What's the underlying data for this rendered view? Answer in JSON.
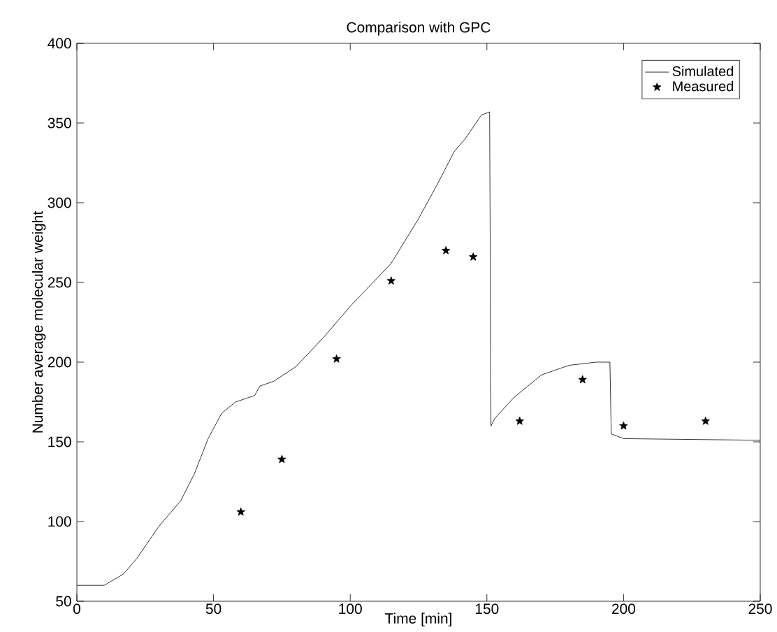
{
  "chart_data": {
    "type": "line",
    "title": "Comparison with GPC",
    "xlabel": "Time [min]",
    "ylabel": "Number average molecular weight",
    "xlim": [
      0,
      250
    ],
    "ylim": [
      50,
      400
    ],
    "xticks": [
      0,
      50,
      100,
      150,
      200,
      250
    ],
    "yticks": [
      50,
      100,
      150,
      200,
      250,
      300,
      350,
      400
    ],
    "legend": "top right",
    "series": [
      {
        "name": "Simulated",
        "type": "line",
        "color": "#000000",
        "marker": "none",
        "line_style": "solid",
        "x": [
          0,
          10,
          17,
          22,
          30,
          38,
          43,
          48,
          53,
          58,
          65,
          67,
          72,
          80,
          90,
          100,
          115,
          125,
          132,
          138,
          142,
          148,
          151,
          151.5,
          153,
          160,
          170,
          180,
          190,
          195,
          195.5,
          200,
          250
        ],
        "values": [
          60,
          60,
          67,
          77,
          97,
          113,
          130,
          152,
          168,
          175,
          179,
          185,
          188,
          197,
          215,
          235,
          262,
          290,
          312,
          332,
          340,
          355,
          357,
          160,
          165,
          178,
          192,
          198,
          200,
          200,
          155,
          152,
          151
        ]
      },
      {
        "name": "Measured",
        "type": "scatter",
        "color": "#000000",
        "marker": "star",
        "x": [
          60,
          75,
          95,
          115,
          135,
          145,
          162,
          185,
          200,
          230
        ],
        "values": [
          106,
          139,
          202,
          251,
          270,
          266,
          163,
          189,
          160,
          163
        ]
      }
    ]
  }
}
